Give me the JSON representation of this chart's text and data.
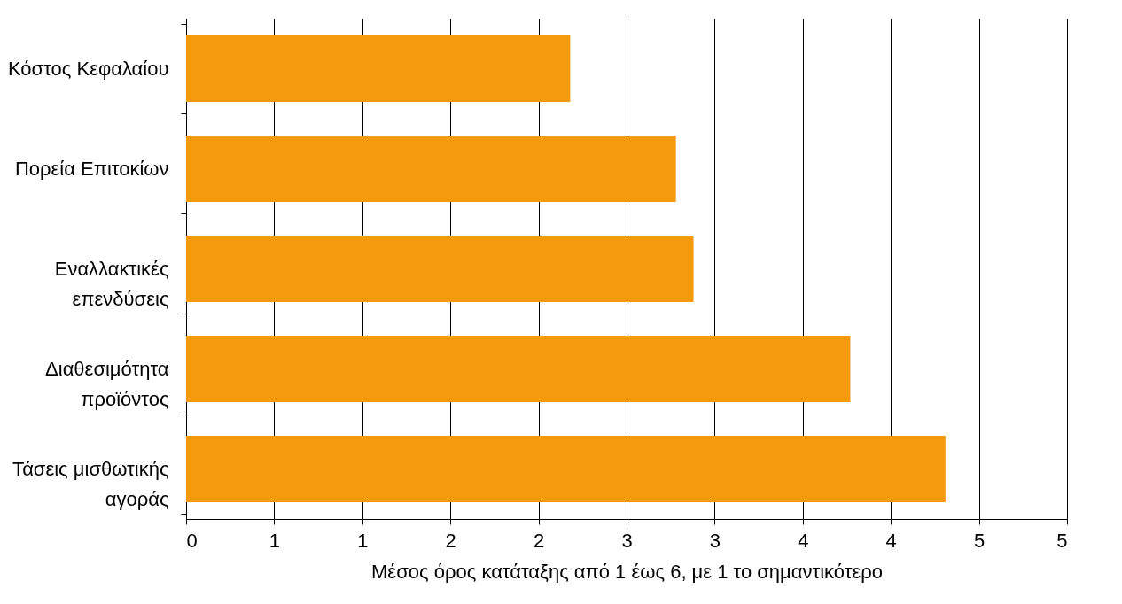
{
  "chart_data": {
    "type": "bar",
    "orientation": "horizontal",
    "xlabel": "Μέσος όρος κατάταξης από 1 έως 6, με 1 το σημαντικότερο",
    "categories": [
      "Κόστος Κεφαλαίου",
      "Πορεία Επιτοκίων",
      "Εναλλακτικές επενδύσεις",
      "Διαθεσιμότητα προϊόντος",
      "Τάσεις μισθωτικής αγοράς"
    ],
    "values": [
      2.18,
      2.78,
      2.88,
      3.77,
      4.31
    ],
    "color": "#f49a0c",
    "xlim": [
      0,
      5
    ],
    "xticks": [
      0,
      {
        "value": 0.5,
        "label": "1"
      },
      1,
      {
        "value": 1.5,
        "label": "2"
      },
      2,
      {
        "value": 2.5,
        "label": "3"
      },
      3,
      {
        "value": 3.5,
        "label": "4"
      },
      4,
      {
        "value": 4.5,
        "label": "5"
      },
      5
    ],
    "grid": "x"
  }
}
